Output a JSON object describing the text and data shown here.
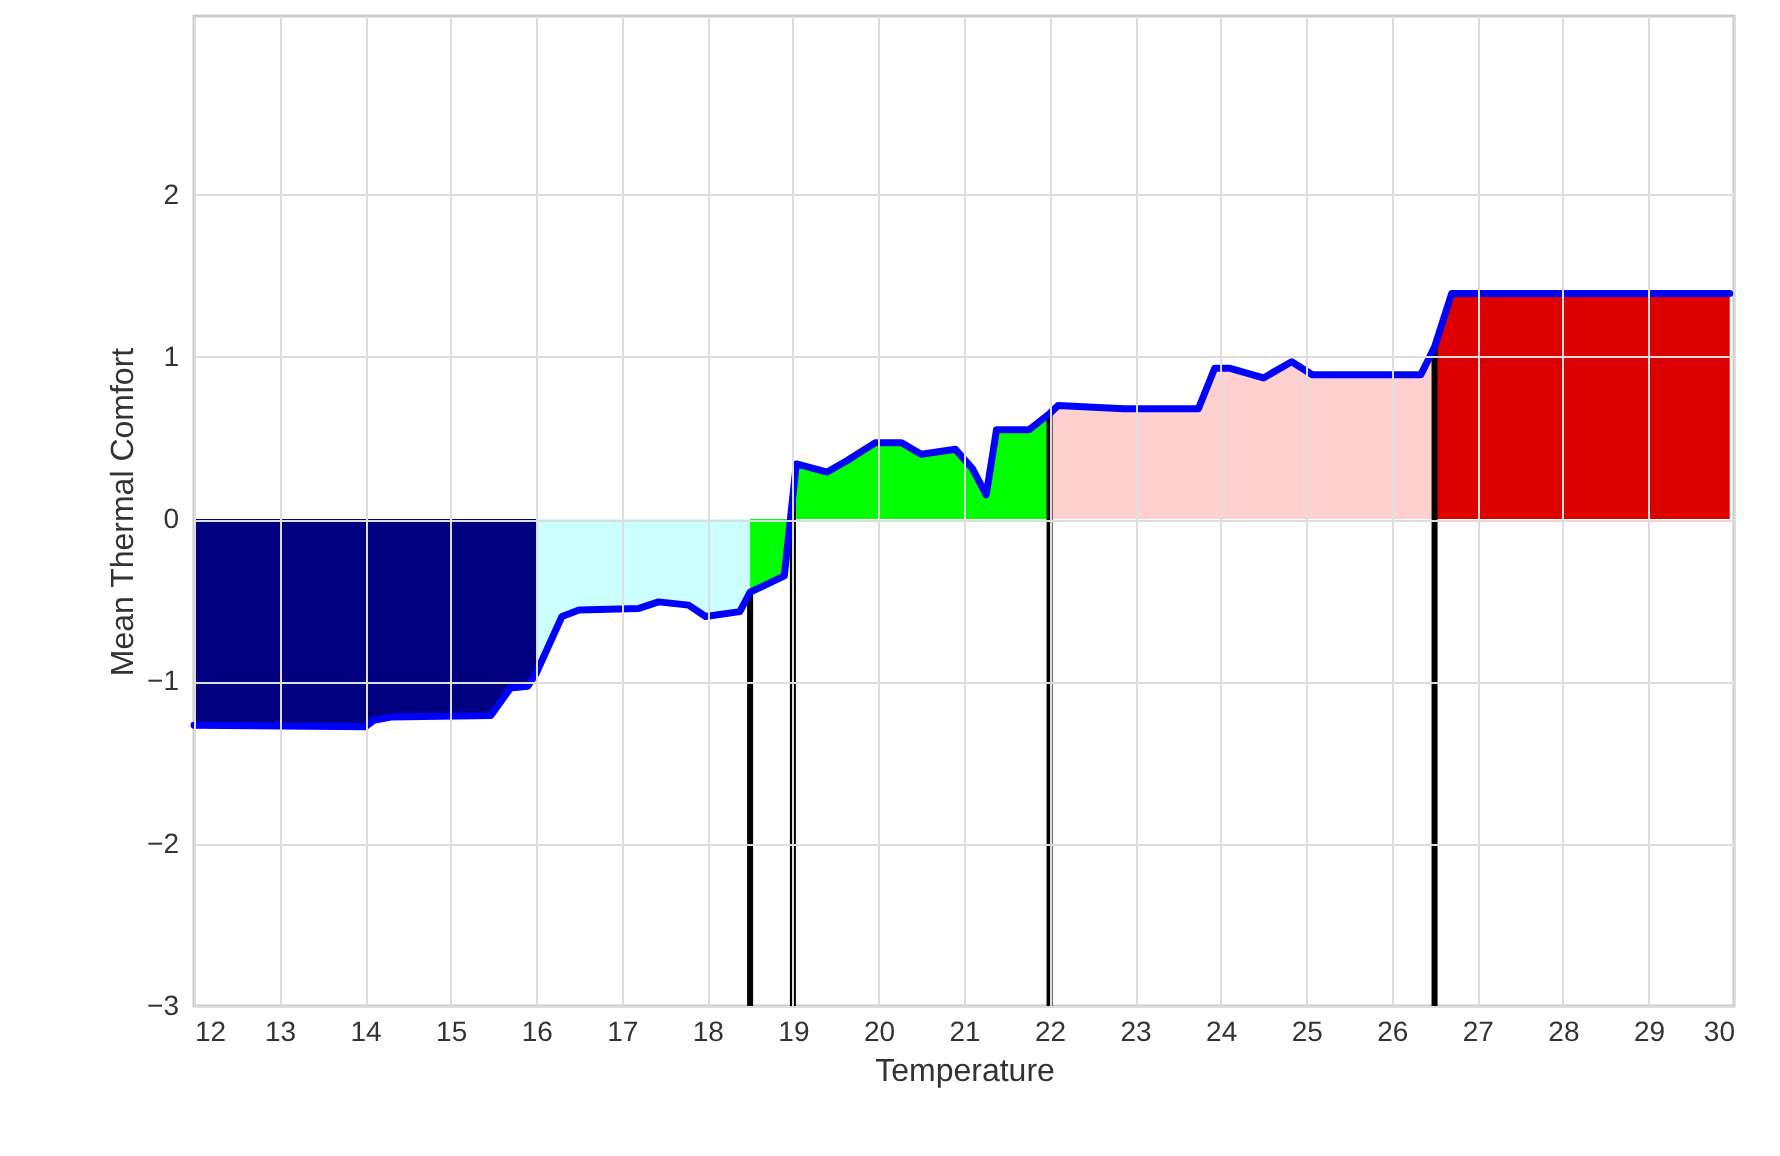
{
  "chart_data": {
    "type": "line",
    "xlabel": "Temperature",
    "ylabel": "Mean Thermal Comfort",
    "xlim": [
      12,
      30
    ],
    "ylim": [
      -3,
      3.1
    ],
    "xticks": [
      12,
      13,
      14,
      15,
      16,
      17,
      18,
      19,
      20,
      21,
      22,
      23,
      24,
      25,
      26,
      27,
      28,
      29,
      30
    ],
    "yticks": [
      {
        "value": -3,
        "label": "−3"
      },
      {
        "value": -2,
        "label": "−2"
      },
      {
        "value": -1,
        "label": "−1"
      },
      0,
      1,
      2
    ],
    "grid": true,
    "line_style": "solid",
    "series": [
      {
        "type": "area",
        "color": "#000080",
        "x": [
          12,
          14,
          14.1,
          14.3,
          15.47,
          15.7,
          15.9,
          16
        ],
        "values": [
          -1.27,
          -1.28,
          -1.24,
          -1.22,
          -1.21,
          -1.04,
          -1.03,
          -0.95
        ]
      },
      {
        "type": "area",
        "color": "#ccffff",
        "x": [
          16,
          16.3,
          16.5,
          17.2,
          17.43,
          17.78,
          17.98,
          18.38,
          18.5
        ],
        "values": [
          -0.95,
          -0.6,
          -0.56,
          -0.55,
          -0.51,
          -0.53,
          -0.6,
          -0.57,
          -0.45
        ]
      },
      {
        "type": "area",
        "color": "#00ff00",
        "x": [
          18.5,
          18.9,
          19.04,
          19.4,
          19.63,
          19.96,
          20.27,
          20.5,
          20.9,
          21.1,
          21.26,
          21.38,
          21.76,
          22
        ],
        "values": [
          -0.45,
          -0.35,
          0.34,
          0.29,
          0.36,
          0.47,
          0.47,
          0.4,
          0.43,
          0.31,
          0.15,
          0.55,
          0.55,
          0.65
        ]
      },
      {
        "type": "area",
        "color": "#ffd0d0",
        "x": [
          22,
          22.1,
          22.87,
          23.74,
          23.93,
          24.1,
          24.5,
          24.83,
          25.07,
          26.34,
          26.5
        ],
        "values": [
          0.65,
          0.7,
          0.68,
          0.68,
          0.93,
          0.93,
          0.87,
          0.97,
          0.89,
          0.89,
          1.06
        ]
      },
      {
        "type": "area",
        "color": "#dd0000",
        "x": [
          26.5,
          26.7,
          29.95
        ],
        "values": [
          1.06,
          1.39,
          1.39
        ]
      },
      {
        "type": "line",
        "color": "#0000ff",
        "x": [
          12,
          14,
          14.1,
          14.3,
          15.47,
          15.7,
          15.9,
          16,
          16.3,
          16.5,
          17.2,
          17.43,
          17.78,
          17.98,
          18.38,
          18.5,
          18.9,
          19.04,
          19.4,
          19.63,
          19.96,
          20.27,
          20.5,
          20.9,
          21.1,
          21.26,
          21.38,
          21.76,
          22,
          22.1,
          22.87,
          23.74,
          23.93,
          24.1,
          24.5,
          24.83,
          25.07,
          26.34,
          26.5,
          26.7,
          29.95
        ],
        "values": [
          -1.27,
          -1.28,
          -1.24,
          -1.22,
          -1.21,
          -1.04,
          -1.03,
          -0.95,
          -0.6,
          -0.56,
          -0.55,
          -0.51,
          -0.53,
          -0.6,
          -0.57,
          -0.45,
          -0.35,
          0.34,
          0.29,
          0.36,
          0.47,
          0.47,
          0.4,
          0.43,
          0.31,
          0.15,
          0.55,
          0.55,
          0.65,
          0.7,
          0.68,
          0.68,
          0.93,
          0.93,
          0.87,
          0.97,
          0.89,
          0.89,
          1.06,
          1.39,
          1.39
        ]
      }
    ],
    "ref_lines": [
      {
        "axis": "x",
        "value": 18.5,
        "color": "#000000"
      },
      {
        "axis": "x",
        "value": 19,
        "color": "#000000"
      },
      {
        "axis": "x",
        "value": 22,
        "color": "#000000"
      },
      {
        "axis": "x",
        "value": 26.5,
        "color": "#000000"
      }
    ]
  }
}
